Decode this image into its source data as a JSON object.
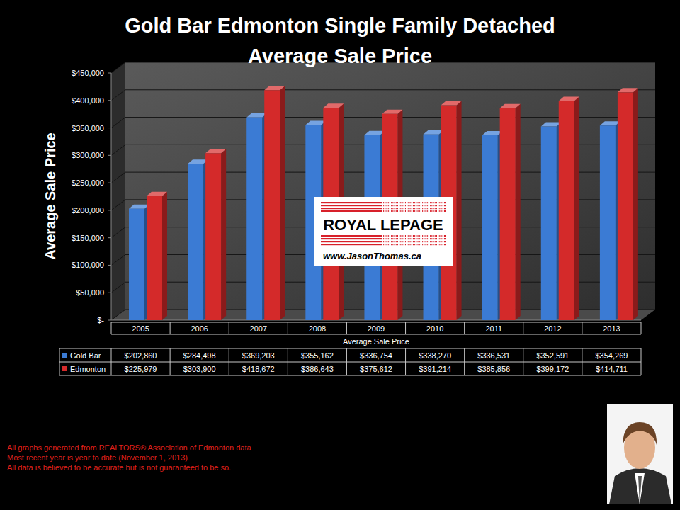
{
  "chart_data": {
    "type": "bar",
    "title": "Gold Bar Edmonton Single Family Detached",
    "subtitle": "Average Sale Price",
    "y_label": "Average Sale Price",
    "x_label": "Average Sale Price",
    "categories": [
      "2005",
      "2006",
      "2007",
      "2008",
      "2009",
      "2010",
      "2011",
      "2012",
      "2013"
    ],
    "series": [
      {
        "name": "Gold Bar",
        "color": "#3b7bd4",
        "values": [
          202860,
          284498,
          369203,
          355162,
          336754,
          338270,
          336531,
          352591,
          354269
        ],
        "value_labels": [
          "$202,860",
          "$284,498",
          "$369,203",
          "$355,162",
          "$336,754",
          "$338,270",
          "$336,531",
          "$352,591",
          "$354,269"
        ]
      },
      {
        "name": "Edmonton",
        "color": "#d42a2a",
        "values": [
          225979,
          303900,
          418672,
          386643,
          375612,
          391214,
          385856,
          399172,
          414711
        ],
        "value_labels": [
          "$225,979",
          "$303,900",
          "$418,672",
          "$386,643",
          "$375,612",
          "$391,214",
          "$385,856",
          "$399,172",
          "$414,711"
        ]
      }
    ],
    "ylim": [
      0,
      450000
    ],
    "yticks": [
      {
        "value": 0,
        "label": "$-"
      },
      {
        "value": 50000,
        "label": "$50,000"
      },
      {
        "value": 100000,
        "label": "$100,000"
      },
      {
        "value": 150000,
        "label": "$150,000"
      },
      {
        "value": 200000,
        "label": "$200,000"
      },
      {
        "value": 250000,
        "label": "$250,000"
      },
      {
        "value": 300000,
        "label": "$300,000"
      },
      {
        "value": 350000,
        "label": "$350,000"
      },
      {
        "value": 400000,
        "label": "$400,000"
      },
      {
        "value": 450000,
        "label": "$450,000"
      }
    ],
    "grid": true,
    "legend": "bottom-left",
    "annotations": [
      "ROYAL LEPAGE",
      "www.JasonThomas.ca"
    ],
    "footnotes": [
      "All graphs generated from REALTORS® Association of Edmonton data",
      "Most recent year is year to date (November 1, 2013)",
      "All data is believed to be accurate but is not guaranteed to be so."
    ]
  }
}
